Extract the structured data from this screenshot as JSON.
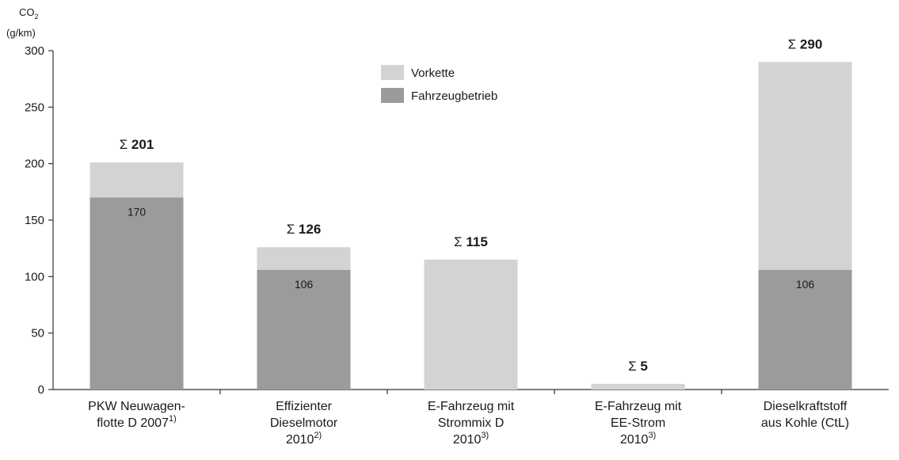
{
  "chart_data": {
    "type": "bar",
    "stacked": true,
    "ylabel_line1": "CO",
    "ylabel_sub": "2",
    "ylabel_line2": "(g/km)",
    "ylim": [
      0,
      300
    ],
    "yticks": [
      "0",
      "50",
      "100",
      "150",
      "200",
      "250",
      "300"
    ],
    "grid": false,
    "legend_position": "top-center",
    "categories": [
      {
        "lines": [
          "PKW Neuwagen-",
          "flotte D 2007"
        ],
        "sup": "1)",
        "sup_line": 1
      },
      {
        "lines": [
          "Effizienter",
          "Dieselmotor",
          "2010"
        ],
        "sup": "2)",
        "sup_line": 2
      },
      {
        "lines": [
          "E-Fahrzeug mit",
          "Strommix D",
          "2010"
        ],
        "sup": "3)",
        "sup_line": 2
      },
      {
        "lines": [
          "E-Fahrzeug mit",
          "EE-Strom",
          "2010"
        ],
        "sup": "3)",
        "sup_line": 2
      },
      {
        "lines": [
          "Dieselkraftstoff",
          "aus Kohle (CtL)"
        ],
        "sup": "",
        "sup_line": -1
      }
    ],
    "series": [
      {
        "name": "Fahrzeugbetrieb",
        "color": "#9b9b9b",
        "values": [
          170,
          106,
          0,
          0,
          106
        ]
      },
      {
        "name": "Vorkette",
        "color": "#d3d3d3",
        "values": [
          31,
          20,
          115,
          5,
          184
        ]
      }
    ],
    "value_labels": [
      "170",
      "106",
      "",
      "",
      "106"
    ],
    "sum_symbol": "Σ",
    "totals": [
      "201",
      "126",
      "115",
      "5",
      "290"
    ]
  }
}
